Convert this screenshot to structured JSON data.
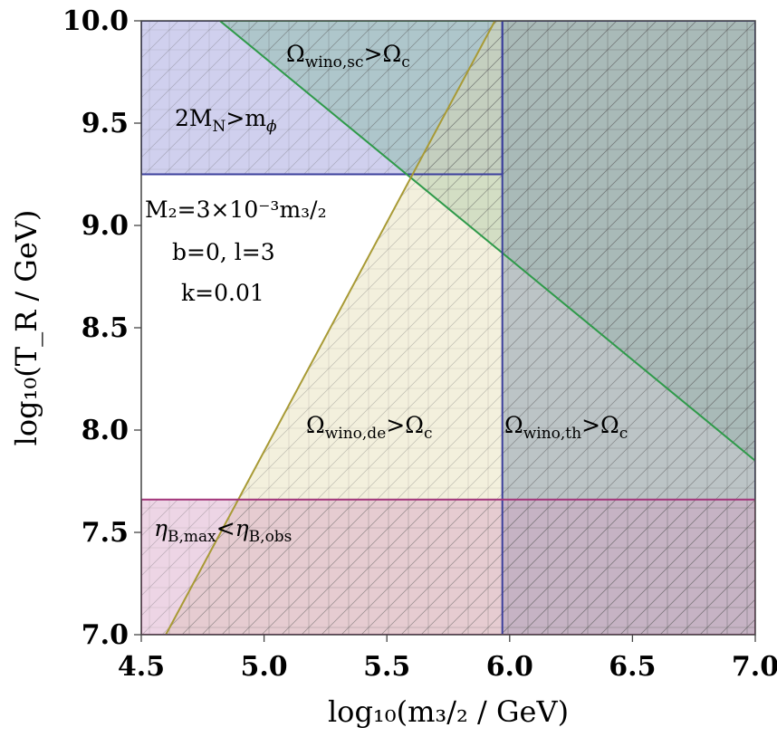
{
  "chart_data": {
    "type": "area",
    "xlabel": "log₁₀(m₃/₂ / GeV)",
    "ylabel": "log₁₀(T_R / GeV)",
    "xlim": [
      4.5,
      7.0
    ],
    "ylim": [
      7.0,
      10.0
    ],
    "x_ticks": [
      "4.5",
      "5.0",
      "5.5",
      "6.0",
      "6.5",
      "7.0"
    ],
    "y_ticks": [
      "7.0",
      "7.5",
      "8.0",
      "8.5",
      "9.0",
      "9.5",
      "10.0"
    ],
    "parameters": [
      "M₂=3×10⁻³m₃/₂",
      "b=0, l=3",
      "k=0.01"
    ],
    "regions": [
      {
        "id": "heavy-N",
        "label_main": "2M",
        "label_sub1": "N",
        "label_mid": ">m",
        "label_greek": "ϕ",
        "color": "#8f8ed6",
        "edge": "#3b3f9c",
        "polygon": [
          [
            4.5,
            9.25
          ],
          [
            4.5,
            10.0
          ],
          [
            5.97,
            10.0
          ],
          [
            5.97,
            9.25
          ]
        ]
      },
      {
        "id": "wino-sc",
        "label_main": "Ω",
        "label_sub1": "wino,sc",
        "label_mid": ">Ω",
        "label_sub2": "c",
        "color": "#7fb89a",
        "edge": "#2f9a4a",
        "polygon": [
          [
            4.82,
            10.0
          ],
          [
            7.0,
            10.0
          ],
          [
            7.0,
            7.85
          ]
        ]
      },
      {
        "id": "wino-de",
        "label_main": "Ω",
        "label_sub1": "wino,de",
        "label_mid": ">Ω",
        "label_sub2": "c",
        "color": "#e2dcae",
        "edge": "#a89a35",
        "polygon": [
          [
            4.6,
            7.0
          ],
          [
            5.94,
            10.0
          ],
          [
            7.0,
            10.0
          ],
          [
            7.0,
            7.0
          ]
        ]
      },
      {
        "id": "wino-th",
        "label_main": "Ω",
        "label_sub1": "wino,th",
        "label_mid": ">Ω",
        "label_sub2": "c",
        "color": "#6f88a6",
        "edge": "#3b3f9c",
        "polygon": [
          [
            5.97,
            7.0
          ],
          [
            5.97,
            10.0
          ],
          [
            7.0,
            10.0
          ],
          [
            7.0,
            7.0
          ]
        ]
      },
      {
        "id": "eta-B",
        "label_main": "η",
        "label_sub1": "B,max",
        "label_mid": "<η",
        "label_sub2": "B,obs",
        "color": "#d49ac0",
        "edge": "#a2347a",
        "polygon": [
          [
            4.5,
            7.0
          ],
          [
            4.5,
            7.66
          ],
          [
            7.0,
            7.66
          ],
          [
            7.0,
            7.0
          ]
        ]
      }
    ]
  }
}
